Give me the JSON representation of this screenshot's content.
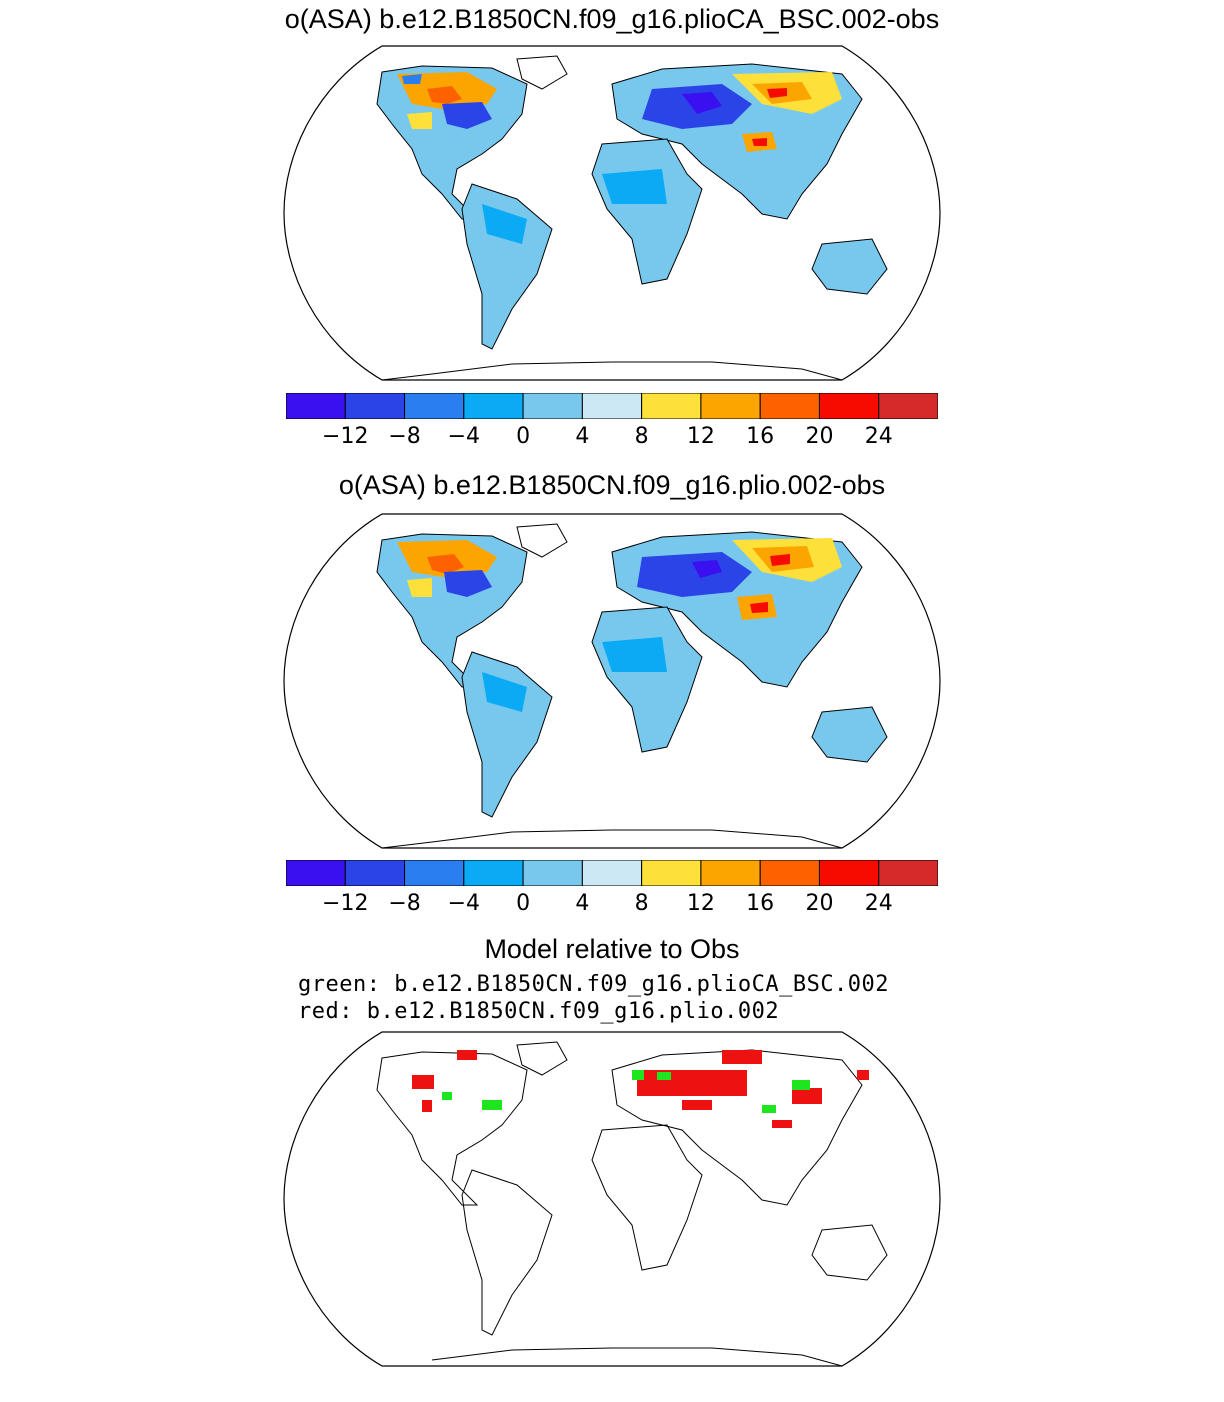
{
  "panels": [
    {
      "title": "o(ASA) b.e12.B1850CN.f09_g16.plioCA_BSC.002-obs",
      "colorbar_ticks": [
        "−12",
        "−8",
        "−4",
        "0",
        "4",
        "8",
        "12",
        "16",
        "20",
        "24"
      ]
    },
    {
      "title": "o(ASA) b.e12.B1850CN.f09_g16.plio.002-obs",
      "colorbar_ticks": [
        "−12",
        "−8",
        "−4",
        "0",
        "4",
        "8",
        "12",
        "16",
        "20",
        "24"
      ]
    },
    {
      "title": "Model relative to Obs",
      "legend_green": "green: b.e12.B1850CN.f09_g16.plioCA_BSC.002",
      "legend_red": "red: b.e12.B1850CN.f09_g16.plio.002"
    }
  ],
  "colorbar": {
    "levels": [
      -16,
      -12,
      -8,
      -4,
      0,
      4,
      8,
      12,
      16,
      20,
      24,
      28
    ],
    "colors": [
      "#3a10f0",
      "#2a44e8",
      "#2a7ef0",
      "#0aaaf5",
      "#78c8ee",
      "#cde8f5",
      "#fde03a",
      "#fca500",
      "#fc6200",
      "#f70a00",
      "#d42a2a"
    ]
  },
  "map_colors": {
    "base_land": "#78c8ee",
    "sea": "#ffffff",
    "outline": "#000000",
    "green_mark": "#1ee61e",
    "red_mark": "#ee1111"
  }
}
